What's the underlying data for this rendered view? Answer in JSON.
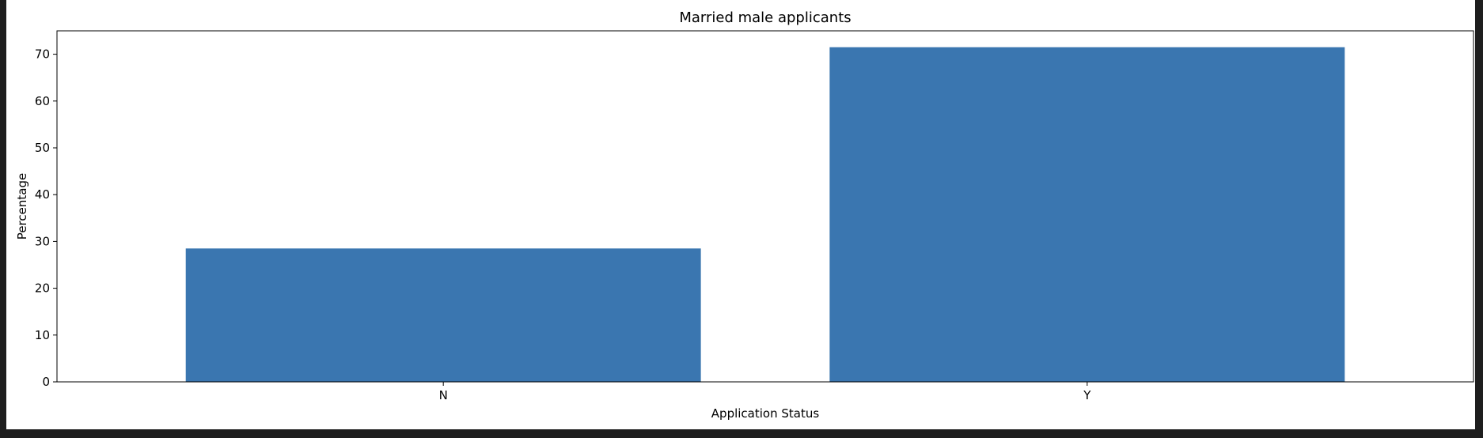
{
  "chart_data": {
    "type": "bar",
    "title": "Married male applicants",
    "xlabel": "Application Status",
    "ylabel": "Percentage",
    "categories": [
      "N",
      "Y"
    ],
    "values": [
      28.5,
      71.5
    ],
    "ylim": [
      0,
      75
    ],
    "yticks": [
      0,
      10,
      20,
      30,
      40,
      50,
      60,
      70
    ],
    "bar_color": "#3a76b0",
    "grid": false,
    "legend": "none"
  }
}
